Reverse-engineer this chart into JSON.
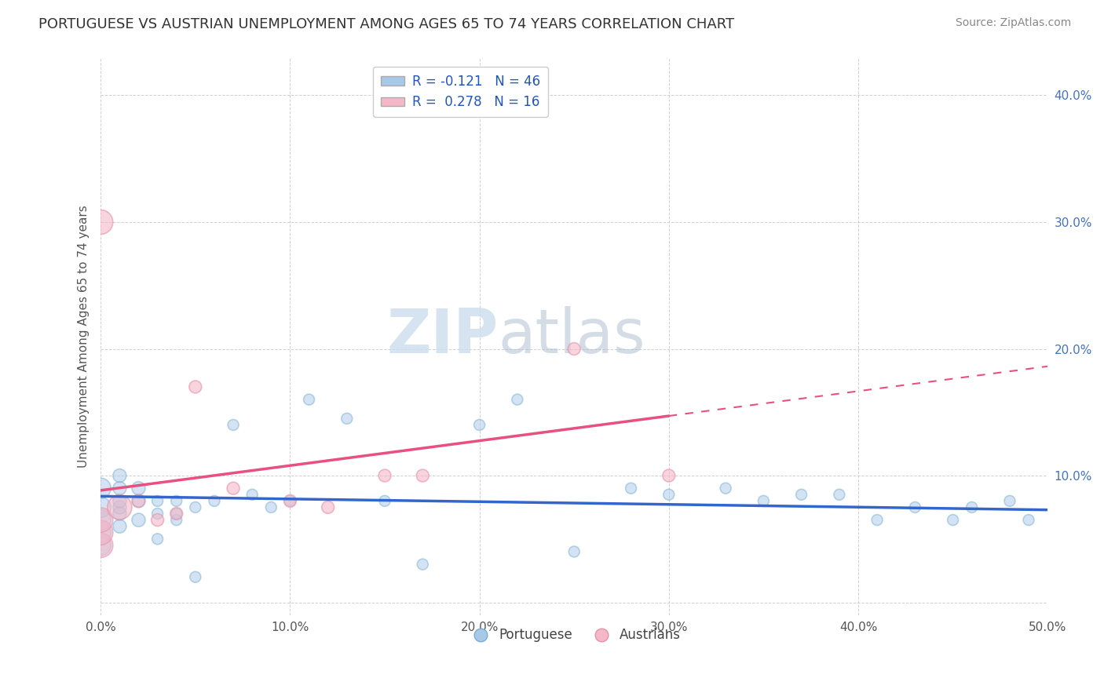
{
  "title": "PORTUGUESE VS AUSTRIAN UNEMPLOYMENT AMONG AGES 65 TO 74 YEARS CORRELATION CHART",
  "source": "Source: ZipAtlas.com",
  "ylabel": "Unemployment Among Ages 65 to 74 years",
  "xlim": [
    0,
    0.5
  ],
  "ylim": [
    -0.01,
    0.43
  ],
  "xticks": [
    0.0,
    0.1,
    0.2,
    0.3,
    0.4,
    0.5
  ],
  "yticks": [
    0.0,
    0.1,
    0.2,
    0.3,
    0.4
  ],
  "xtick_labels": [
    "0.0%",
    "10.0%",
    "20.0%",
    "30.0%",
    "40.0%",
    "50.0%"
  ],
  "ytick_labels": [
    "",
    "10.0%",
    "20.0%",
    "30.0%",
    "40.0%"
  ],
  "blue_color": "#a8c8e8",
  "pink_color": "#f4b8c8",
  "blue_edge_color": "#7aaed0",
  "pink_edge_color": "#e890a8",
  "blue_line_color": "#3366cc",
  "pink_line_color": "#e85080",
  "legend_blue_label": "R = -0.121   N = 46",
  "legend_pink_label": "R =  0.278   N = 16",
  "legend_bottom_blue": "Portuguese",
  "legend_bottom_pink": "Austrians",
  "R_blue": -0.121,
  "R_pink": 0.278,
  "portuguese_x": [
    0.0,
    0.0,
    0.0,
    0.0,
    0.0,
    0.01,
    0.01,
    0.01,
    0.01,
    0.01,
    0.01,
    0.02,
    0.02,
    0.02,
    0.03,
    0.03,
    0.03,
    0.04,
    0.04,
    0.04,
    0.05,
    0.05,
    0.06,
    0.07,
    0.08,
    0.09,
    0.1,
    0.11,
    0.13,
    0.15,
    0.17,
    0.2,
    0.22,
    0.25,
    0.28,
    0.3,
    0.33,
    0.35,
    0.37,
    0.39,
    0.41,
    0.43,
    0.45,
    0.46,
    0.48,
    0.49
  ],
  "portuguese_y": [
    0.045,
    0.055,
    0.065,
    0.075,
    0.09,
    0.06,
    0.07,
    0.075,
    0.08,
    0.09,
    0.1,
    0.065,
    0.08,
    0.09,
    0.05,
    0.07,
    0.08,
    0.065,
    0.07,
    0.08,
    0.075,
    0.02,
    0.08,
    0.14,
    0.085,
    0.075,
    0.08,
    0.16,
    0.145,
    0.08,
    0.03,
    0.14,
    0.16,
    0.04,
    0.09,
    0.085,
    0.09,
    0.08,
    0.085,
    0.085,
    0.065,
    0.075,
    0.065,
    0.075,
    0.08,
    0.065
  ],
  "austrian_x": [
    0.0,
    0.0,
    0.0,
    0.0,
    0.01,
    0.02,
    0.03,
    0.04,
    0.05,
    0.07,
    0.1,
    0.12,
    0.15,
    0.17,
    0.25,
    0.3
  ],
  "austrian_y": [
    0.045,
    0.055,
    0.065,
    0.3,
    0.075,
    0.08,
    0.065,
    0.07,
    0.17,
    0.09,
    0.08,
    0.075,
    0.1,
    0.1,
    0.2,
    0.1
  ],
  "portuguese_sizes_large": 350,
  "portuguese_sizes_medium": 150,
  "portuguese_sizes_small": 100,
  "austrian_sizes_large": 500,
  "austrian_sizes_small": 130,
  "watermark_zip": "ZIP",
  "watermark_atlas": "atlas",
  "title_fontsize": 13,
  "axis_label_fontsize": 11,
  "tick_fontsize": 11,
  "source_fontsize": 10,
  "legend_fontsize": 12
}
